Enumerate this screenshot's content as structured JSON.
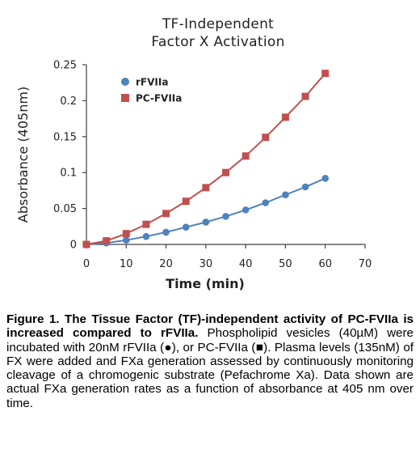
{
  "chart_data": {
    "type": "line",
    "title": "TF-Independent Factor X Activation",
    "title_lines": [
      "TF-Independent",
      "Factor X Activation"
    ],
    "xlabel": "Time (min)",
    "ylabel": "Absorbance (405nm)",
    "xlim": [
      0,
      70
    ],
    "ylim": [
      0,
      0.25
    ],
    "x_ticks": [
      "0",
      "10",
      "20",
      "30",
      "40",
      "50",
      "60",
      "70"
    ],
    "y_ticks": [
      "0",
      "0.05",
      "0.1",
      "0.15",
      "0.2",
      "0.25"
    ],
    "grid": false,
    "legend_position": "top-left",
    "series": [
      {
        "name": "rFVIIa",
        "marker": "circle",
        "color": "#4f81bd",
        "x": [
          0,
          5,
          10,
          15,
          20,
          25,
          30,
          35,
          40,
          45,
          50,
          55,
          60
        ],
        "y": [
          0,
          0.002,
          0.006,
          0.011,
          0.017,
          0.024,
          0.031,
          0.039,
          0.048,
          0.058,
          0.069,
          0.08,
          0.092
        ]
      },
      {
        "name": "PC-FVIIa",
        "marker": "square",
        "color": "#c0504d",
        "x": [
          0,
          5,
          10,
          15,
          20,
          25,
          30,
          35,
          40,
          45,
          50,
          55,
          60
        ],
        "y": [
          0,
          0.005,
          0.015,
          0.028,
          0.043,
          0.06,
          0.079,
          0.1,
          0.123,
          0.149,
          0.177,
          0.206,
          0.238
        ]
      }
    ]
  },
  "caption": {
    "bold": "Figure 1. The Tissue Factor (TF)-independent activity of PC-FVIIa is increased compared to rFVIIa.",
    "text": " Phospholipid vesicles (40µM) were incubated with 20nM rFVIIa (●), or PC-FVIIa (■). Plasma levels (135nM) of FX were added and FXa generation assessed by continuously monitoring cleavage of a chromogenic substrate (Pefachrome Xa).  Data shown are actual FXa generation rates as a function of absorbance at 405 nm over time."
  }
}
